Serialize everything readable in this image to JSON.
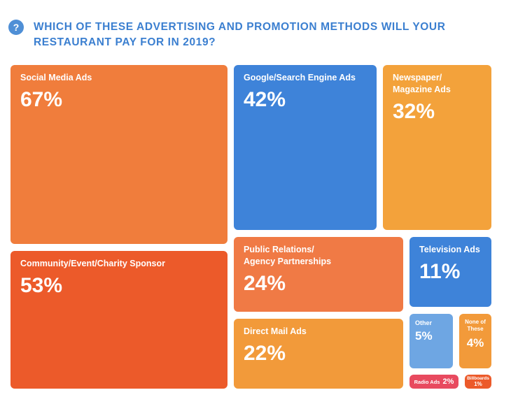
{
  "question": {
    "icon": "question-mark-icon",
    "icon_text": "?",
    "title": "WHICH OF THESE ADVERTISING AND PROMOTION METHODS WILL YOUR RESTAURANT PAY FOR IN 2019?"
  },
  "chart_data": {
    "type": "treemap",
    "title": "WHICH OF THESE ADVERTISING AND PROMOTION METHODS WILL YOUR RESTAURANT PAY FOR IN 2019?",
    "unit": "%",
    "categories": [
      "Social Media Ads",
      "Community/Event/Charity Sponsor",
      "Google/Search Engine Ads",
      "Newspaper/ Magazine Ads",
      "Public Relations/ Agency Partnerships",
      "Direct Mail Ads",
      "Television Ads",
      "Other",
      "None of These",
      "Radio Ads",
      "Billboards"
    ],
    "values": [
      67,
      53,
      42,
      32,
      24,
      22,
      11,
      5,
      4,
      2,
      1
    ],
    "items": [
      {
        "label": "Social Media Ads",
        "value": 67,
        "display": "67%",
        "color": "#f07d3c"
      },
      {
        "label": "Community/Event/Charity Sponsor",
        "value": 53,
        "display": "53%",
        "color": "#ec5a2a"
      },
      {
        "label": "Google/Search Engine Ads",
        "value": 42,
        "display": "42%",
        "color": "#3e83d9"
      },
      {
        "label": "Newspaper/\nMagazine Ads",
        "value": 32,
        "display": "32%",
        "color": "#f3a23b"
      },
      {
        "label": "Public Relations/\nAgency Partnerships",
        "value": 24,
        "display": "24%",
        "color": "#f07a45"
      },
      {
        "label": "Direct Mail Ads",
        "value": 22,
        "display": "22%",
        "color": "#f29a3a"
      },
      {
        "label": "Television Ads",
        "value": 11,
        "display": "11%",
        "color": "#3e83d9"
      },
      {
        "label": "Other",
        "value": 5,
        "display": "5%",
        "color": "#6ea6e3"
      },
      {
        "label": "None of\nThese",
        "value": 4,
        "display": "4%",
        "color": "#f29a3a"
      },
      {
        "label": "Radio Ads",
        "value": 2,
        "display": "2%",
        "color": "#e84a5f"
      },
      {
        "label": "Billboards",
        "value": 1,
        "display": "1%",
        "color": "#ec5a2a"
      }
    ]
  }
}
